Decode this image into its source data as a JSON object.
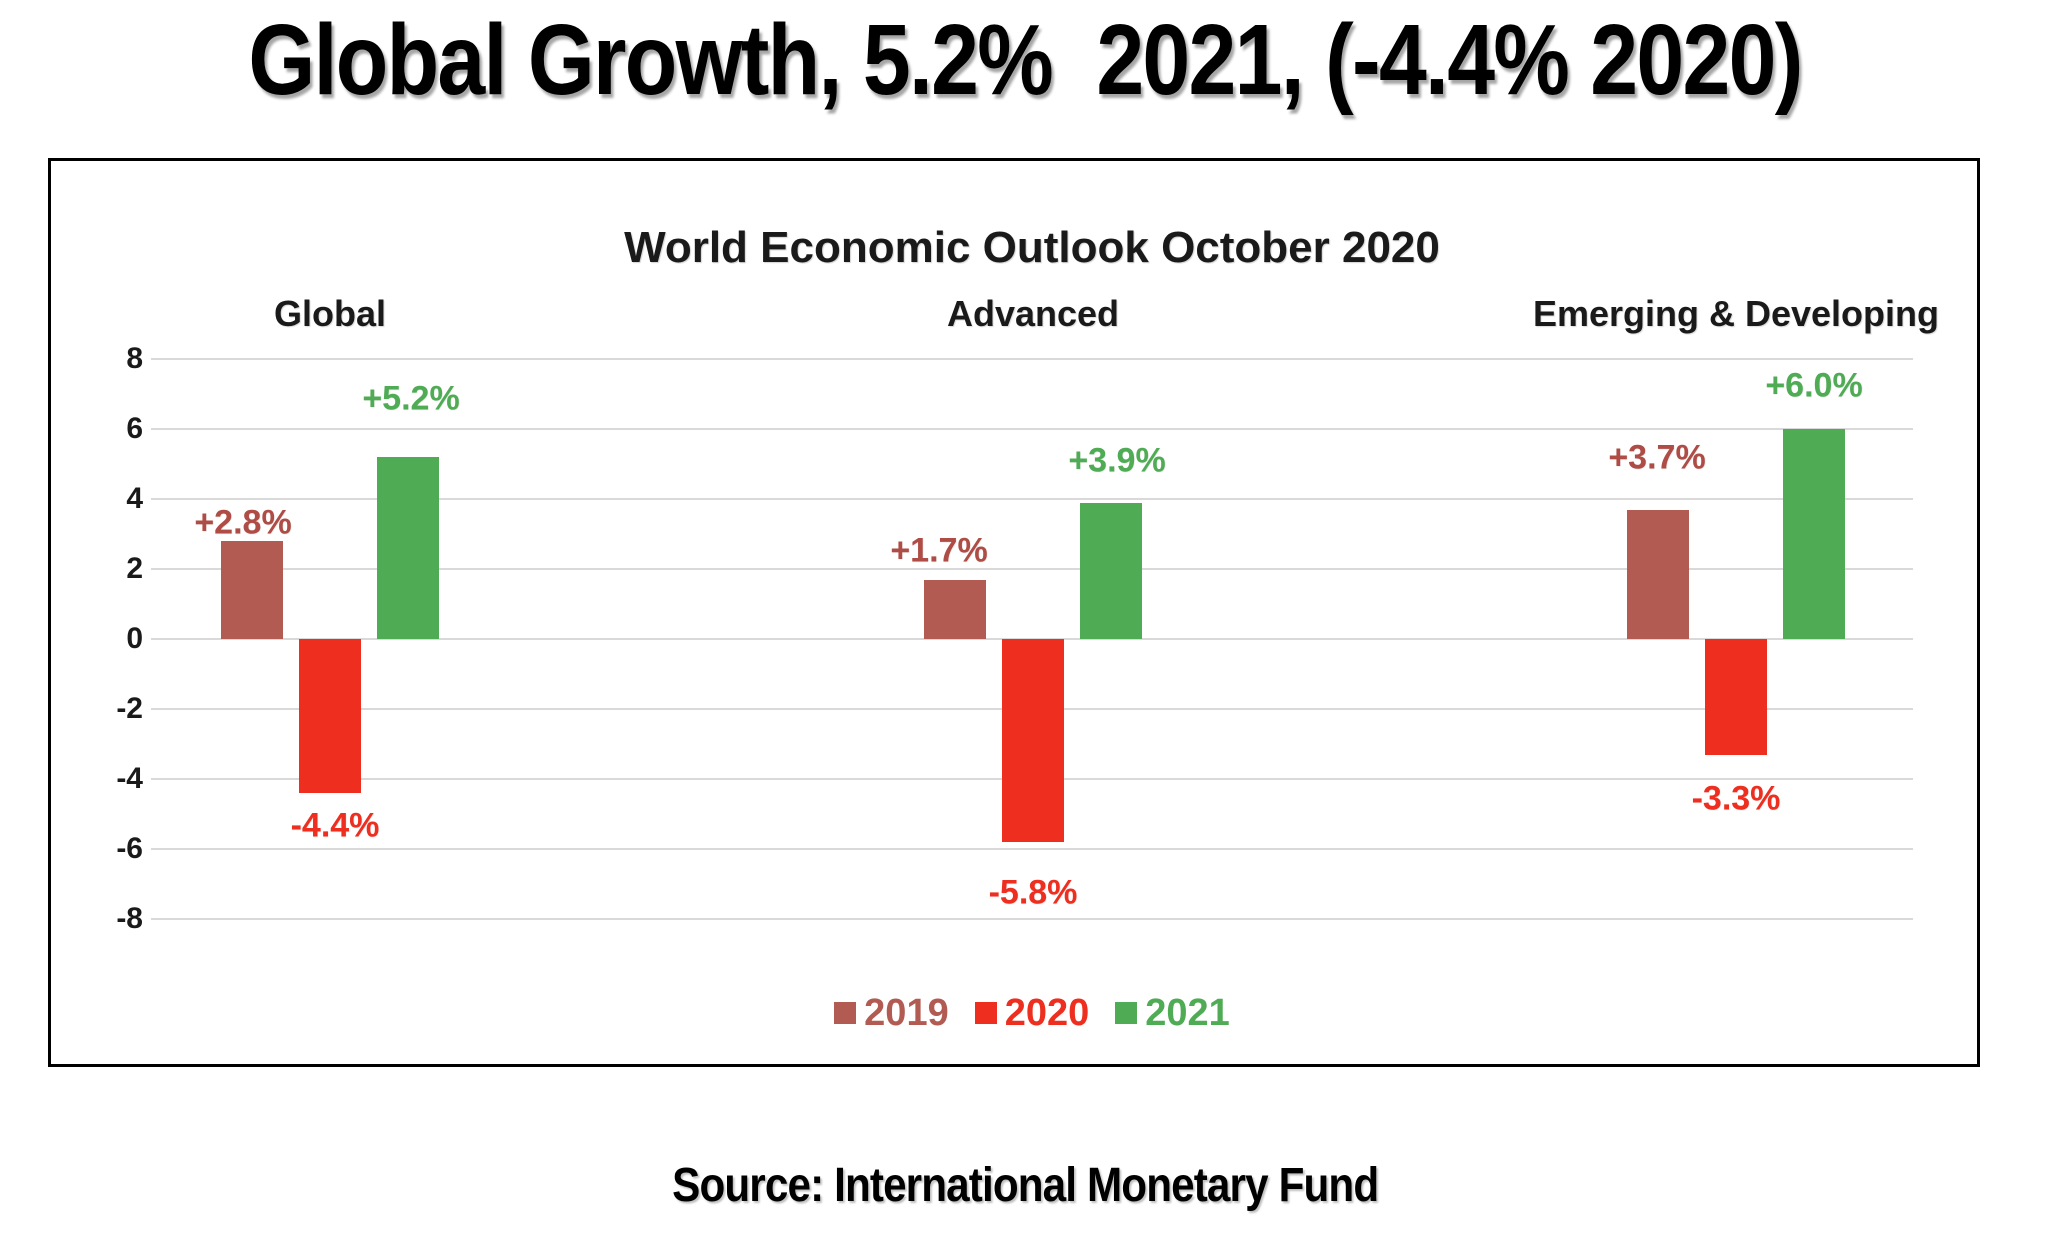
{
  "title": "Global Growth, 5.2%  2021, (-4.4% 2020)",
  "source": "Source: International Monetary Fund",
  "chart_data": {
    "type": "bar",
    "title": "World Economic Outlook October 2020",
    "categories": [
      "Global",
      "Advanced",
      "Emerging & Developing"
    ],
    "series": [
      {
        "name": "2019",
        "color": "#B25B53",
        "label_color": "#AF4C45",
        "values": [
          2.8,
          1.7,
          3.7
        ],
        "labels": [
          "+2.8%",
          "+1.7%",
          "+3.7%"
        ]
      },
      {
        "name": "2020",
        "color": "#EE2E1E",
        "label_color": "#EE2E1E",
        "values": [
          -4.4,
          -5.8,
          -3.3
        ],
        "labels": [
          "-4.4%",
          "-5.8%",
          "-3.3%"
        ]
      },
      {
        "name": "2021",
        "color": "#4FAC55",
        "label_color": "#4FAC55",
        "values": [
          5.2,
          3.9,
          6.0
        ],
        "labels": [
          "+5.2%",
          "+3.9%",
          "+6.0%"
        ]
      }
    ],
    "ylim": [
      -8,
      8
    ],
    "yticks": [
      8,
      6,
      4,
      2,
      0,
      -2,
      -4,
      -6,
      -8
    ],
    "grid": true,
    "legend_position": "bottom-center",
    "legend": [
      "2019",
      "2020",
      "2021"
    ],
    "gridline_color": "#D9D9D9"
  }
}
